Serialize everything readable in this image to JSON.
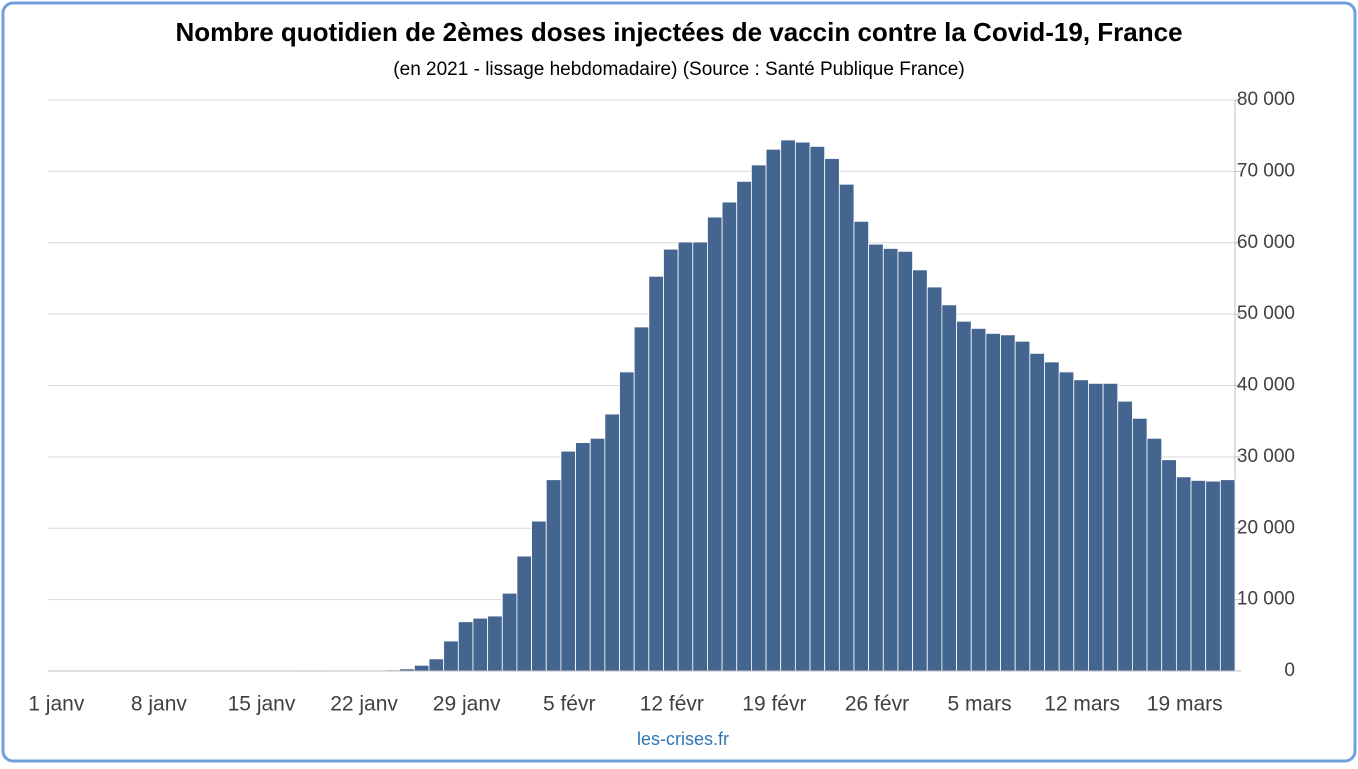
{
  "chart_data": {
    "type": "bar",
    "title": "Nombre quotidien de 2èmes doses injectées de vaccin contre la Covid-19, France",
    "subtitle": "(en 2021 - lissage hebdomadaire) (Source : Santé Publique France)",
    "source": "les-crises.fr",
    "color": "#436590",
    "grid": true,
    "y_axis_side": "right",
    "ylim": [
      0,
      80000
    ],
    "yticks": [
      0,
      {
        "value": 10000,
        "label": "10 000"
      },
      {
        "value": 20000,
        "label": "20 000"
      },
      {
        "value": 30000,
        "label": "30 000"
      },
      {
        "value": 40000,
        "label": "40 000"
      },
      {
        "value": 50000,
        "label": "50 000"
      },
      {
        "value": 60000,
        "label": "60 000"
      },
      {
        "value": 70000,
        "label": "70 000"
      },
      {
        "value": 80000,
        "label": "80 000"
      }
    ],
    "categories": [
      "1 janv",
      null,
      null,
      null,
      null,
      null,
      null,
      "8 janv",
      null,
      null,
      null,
      null,
      null,
      null,
      "15 janv",
      null,
      null,
      null,
      null,
      null,
      null,
      "22 janv",
      null,
      null,
      null,
      null,
      null,
      null,
      "29 janv",
      null,
      null,
      null,
      null,
      null,
      null,
      "5 févr",
      null,
      null,
      null,
      null,
      null,
      null,
      "12 févr",
      null,
      null,
      null,
      null,
      null,
      null,
      "19 févr",
      null,
      null,
      null,
      null,
      null,
      null,
      "26 févr",
      null,
      null,
      null,
      null,
      null,
      null,
      "5 mars",
      null,
      null,
      null,
      null,
      null,
      null,
      "12 mars",
      null,
      null,
      null,
      null,
      null,
      null,
      "19 mars",
      null,
      null,
      null
    ],
    "values": [
      20,
      20,
      20,
      20,
      30,
      30,
      30,
      30,
      40,
      40,
      40,
      50,
      50,
      60,
      60,
      70,
      70,
      80,
      80,
      90,
      100,
      110,
      120,
      150,
      300,
      800,
      1700,
      4200,
      6900,
      7400,
      7700,
      10900,
      16100,
      21000,
      26800,
      30800,
      32000,
      32600,
      36000,
      41900,
      48200,
      55300,
      59100,
      60100,
      60100,
      63600,
      65700,
      68600,
      70900,
      73100,
      74400,
      74100,
      73500,
      71800,
      68200,
      63000,
      59800,
      59200,
      58800,
      56200,
      53800,
      51300,
      49000,
      48000,
      47300,
      47100,
      46200,
      44500,
      43300,
      41900,
      40800,
      40300,
      40300,
      37800,
      35400,
      32600,
      29600,
      27200,
      26700,
      26600,
      26800
    ]
  }
}
